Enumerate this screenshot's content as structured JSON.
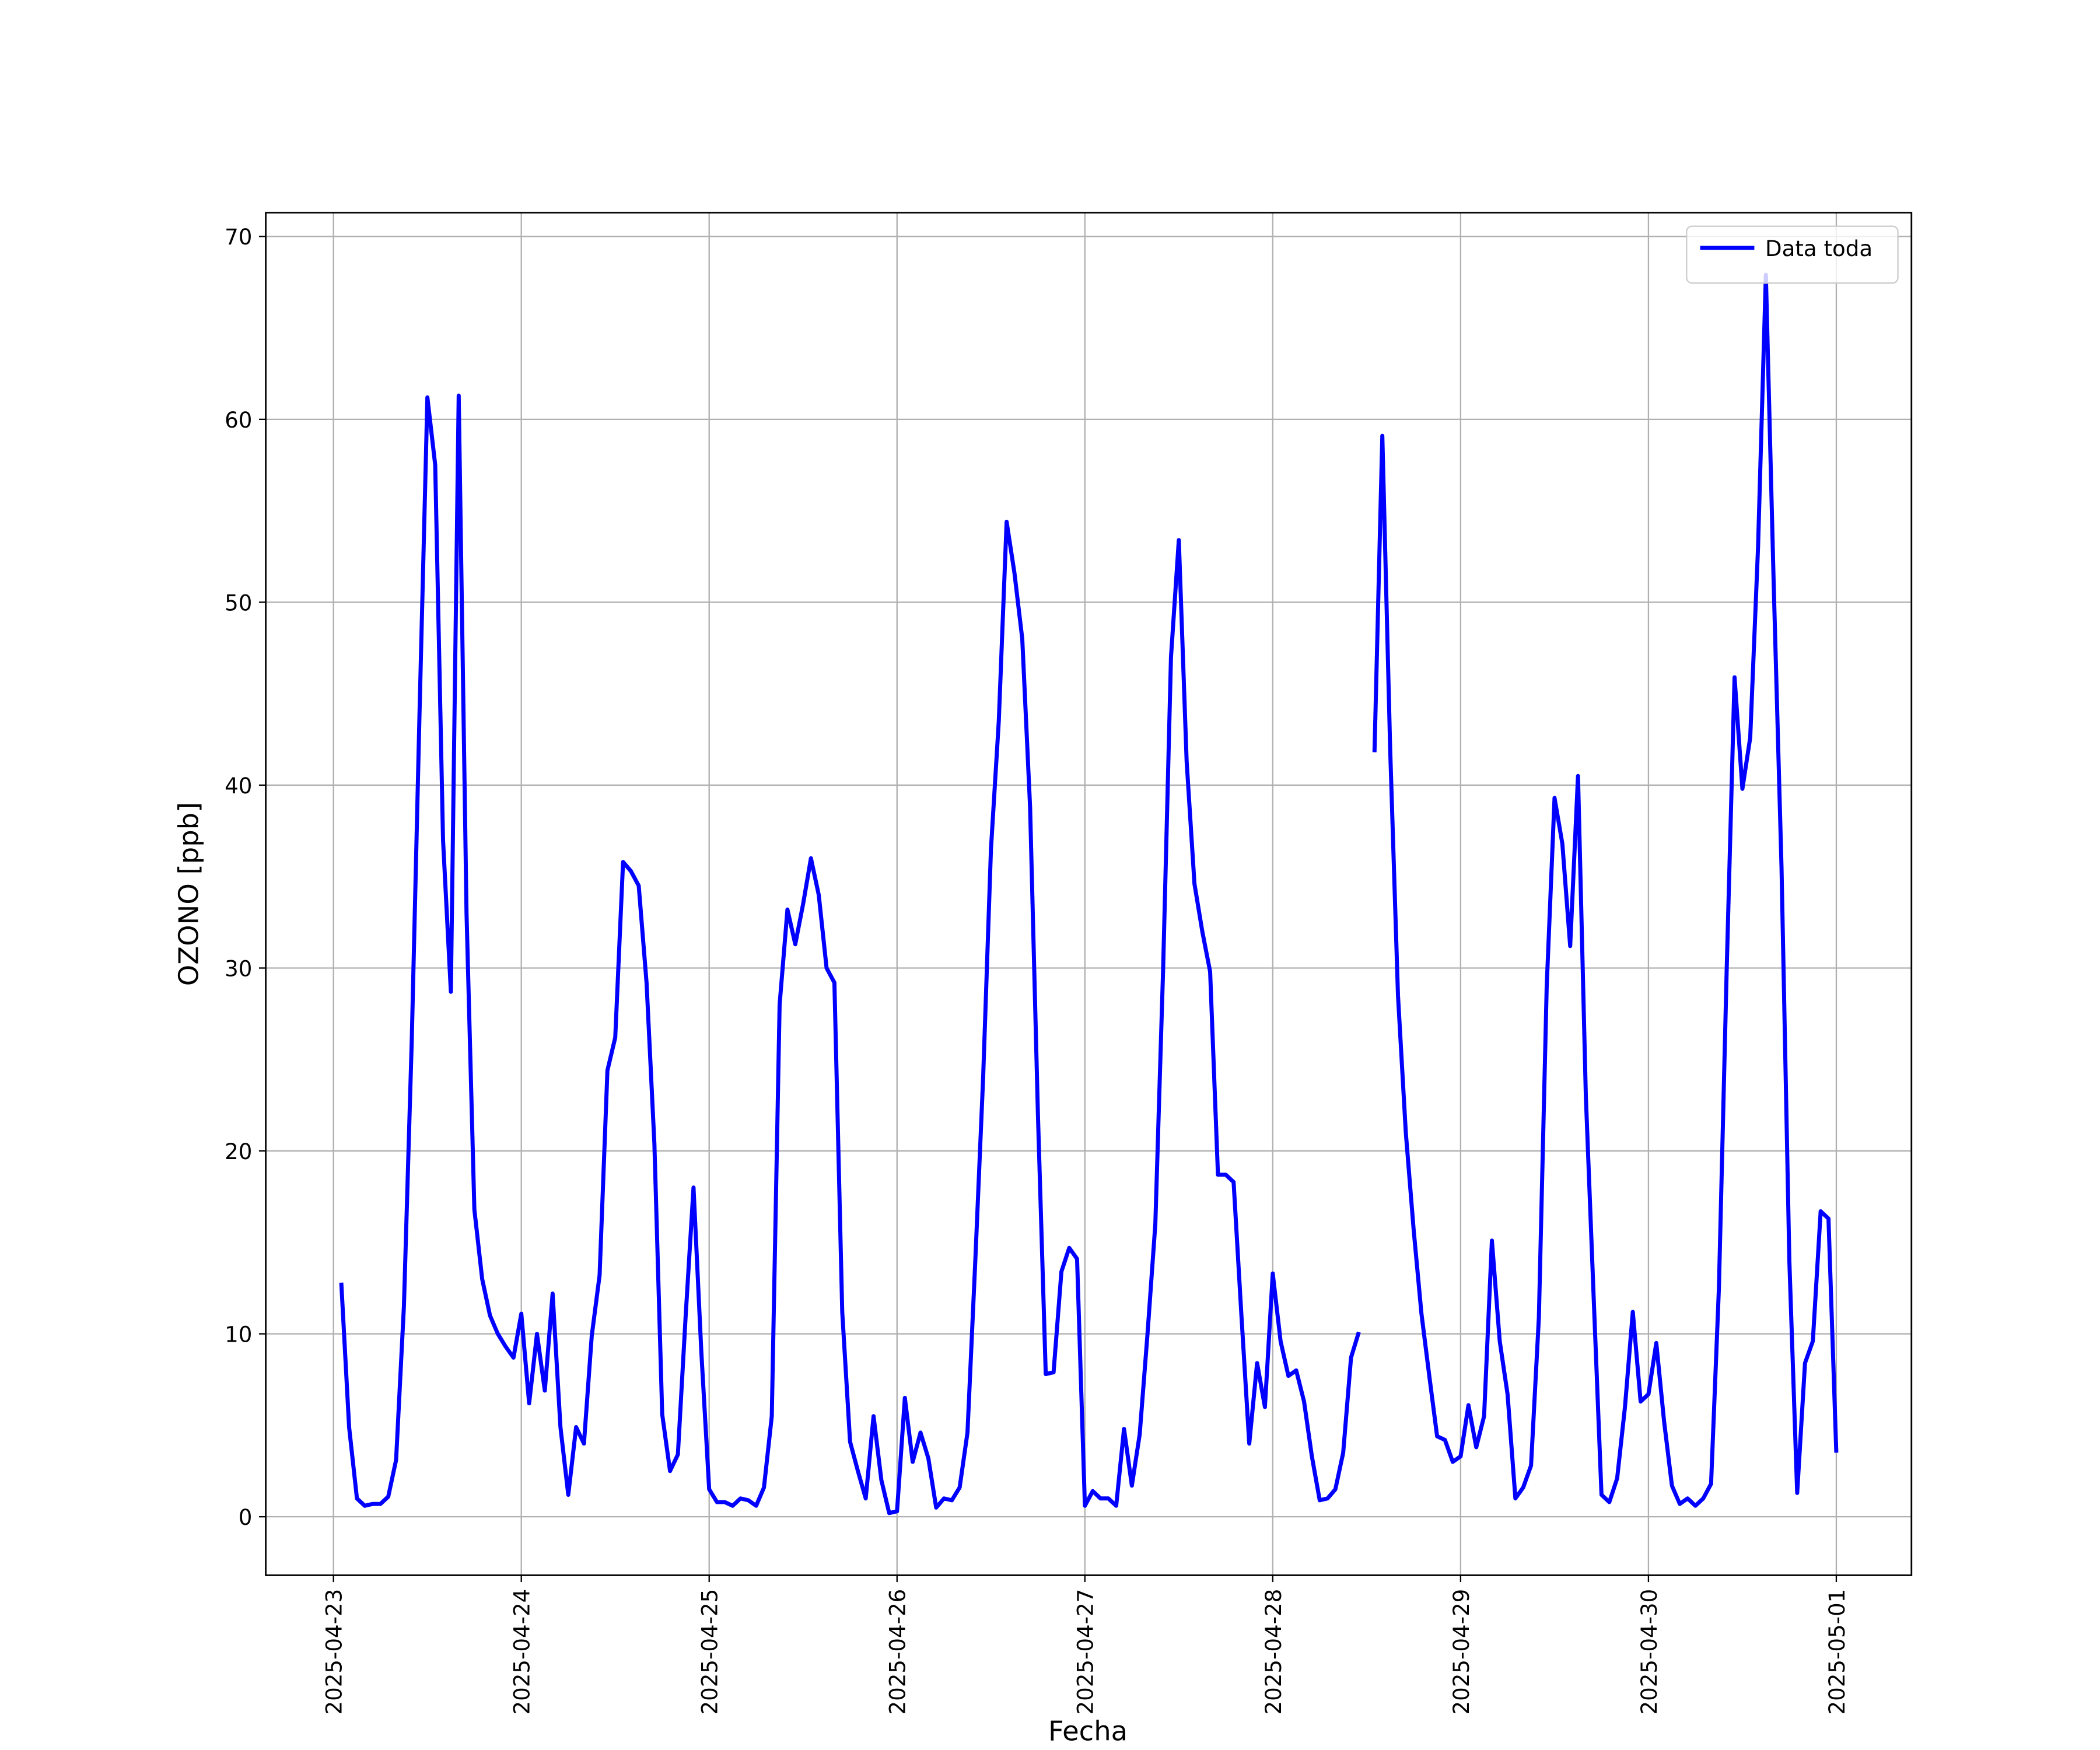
{
  "chart_data": {
    "type": "line",
    "xlabel": "Fecha",
    "ylabel": "OZONO [ppb]",
    "x": [
      1,
      2,
      3,
      4,
      5,
      6,
      7,
      8,
      9,
      10,
      11,
      12,
      13,
      14,
      15,
      16,
      17,
      18,
      19,
      20,
      21,
      22,
      23,
      24,
      25,
      26,
      27,
      28,
      29,
      30,
      31,
      32,
      33,
      34,
      35,
      36,
      37,
      38,
      39,
      40,
      41,
      42,
      43,
      44,
      45,
      46,
      47,
      48,
      49,
      50,
      51,
      52,
      53,
      54,
      55,
      56,
      57,
      58,
      59,
      60,
      61,
      62,
      63,
      64,
      65,
      66,
      67,
      68,
      69,
      70,
      71,
      72,
      73,
      74,
      75,
      76,
      77,
      78,
      79,
      80,
      81,
      82,
      83,
      84,
      85,
      86,
      87,
      88,
      89,
      90,
      91,
      92,
      93,
      94,
      95,
      96,
      97,
      98,
      99,
      100,
      101,
      102,
      103,
      104,
      105,
      106,
      107,
      108,
      109,
      110,
      111,
      112,
      113,
      114,
      115,
      116,
      117,
      118,
      119,
      120,
      121,
      122,
      123,
      124,
      125,
      126,
      127,
      128,
      129,
      130,
      131,
      132,
      133,
      134,
      135,
      136,
      137,
      138,
      139,
      140,
      141,
      142,
      143,
      144,
      145,
      146,
      147,
      148,
      149,
      150,
      151,
      152,
      153,
      154,
      155,
      156,
      157,
      158,
      159,
      160,
      161,
      162,
      163,
      164,
      165,
      166,
      167,
      168,
      169,
      170,
      171,
      172,
      173,
      174,
      175,
      176,
      177,
      178,
      179,
      180,
      181,
      182,
      183,
      184,
      185,
      186,
      187,
      188,
      189,
      190,
      191,
      192
    ],
    "series": [
      {
        "name": "Data toda",
        "color": "#0000ff",
        "values": [
          12.8,
          4.9,
          1.0,
          0.6,
          0.7,
          0.7,
          1.1,
          3.1,
          11.5,
          26,
          44,
          61.2,
          57.5,
          37,
          28.7,
          61.3,
          33,
          16.8,
          13,
          11,
          10,
          9.3,
          8.7,
          11.1,
          6.2,
          10,
          6.9,
          12.2,
          4.9,
          1.2,
          4.9,
          4.0,
          9.9,
          13.2,
          24.4,
          26.2,
          35.8,
          35.3,
          34.5,
          29.2,
          20.4,
          5.6,
          2.5,
          3.4,
          11,
          18,
          9,
          1.5,
          0.8,
          0.8,
          0.6,
          1.0,
          0.9,
          0.6,
          1.6,
          5.5,
          28,
          33.2,
          31.3,
          33.5,
          36,
          34,
          30,
          29.2,
          11.2,
          4.1,
          2.5,
          1.0,
          5.5,
          2.0,
          0.2,
          0.3,
          6.5,
          3.0,
          4.6,
          3.2,
          0.5,
          1.0,
          0.9,
          1.6,
          4.6,
          14,
          24,
          36.5,
          43.5,
          54.4,
          51.6,
          48,
          38.8,
          22,
          7.8,
          7.9,
          13.4,
          14.7,
          14.1,
          0.6,
          1.4,
          1.0,
          1.0,
          0.6,
          4.8,
          1.7,
          4.5,
          10,
          16,
          30,
          47,
          53.4,
          41.3,
          34.6,
          32,
          29.8,
          18.7,
          18.7,
          18.3,
          11,
          4.0,
          8.4,
          6.0,
          13.3,
          9.6,
          7.7,
          8.0,
          6.3,
          3.3,
          0.9,
          1.0,
          1.5,
          3.5,
          8.7,
          10.1,
          null,
          41.8,
          59.1,
          42,
          28.5,
          21,
          15.7,
          11.1,
          7.7,
          4.4,
          4.2,
          3.0,
          3.3,
          6.1,
          3.8,
          5.5,
          15.1,
          9.6,
          6.7,
          1.0,
          1.6,
          2.8,
          10.9,
          29,
          39.3,
          36.8,
          31.2,
          40.5,
          23,
          12,
          1.2,
          0.8,
          2.1,
          6.0,
          11.2,
          6.3,
          6.7,
          9.5,
          5.2,
          1.7,
          0.7,
          1.0,
          0.6,
          1.0,
          1.8,
          12.5,
          30,
          45.9,
          39.8,
          42.6,
          53,
          67.9,
          51,
          35.5,
          14,
          1.3,
          8.4,
          9.6,
          16.7,
          16.3,
          3.5
        ]
      }
    ],
    "xlim": [
      -8.65,
      201.6
    ],
    "ylim": [
      -3.2,
      71.3
    ],
    "xticks": [
      {
        "value": 0,
        "label": "2025-04-23"
      },
      {
        "value": 24,
        "label": "2025-04-24"
      },
      {
        "value": 48,
        "label": "2025-04-25"
      },
      {
        "value": 72,
        "label": "2025-04-26"
      },
      {
        "value": 96,
        "label": "2025-04-27"
      },
      {
        "value": 120,
        "label": "2025-04-28"
      },
      {
        "value": 144,
        "label": "2025-04-29"
      },
      {
        "value": 168,
        "label": "2025-04-30"
      },
      {
        "value": 192,
        "label": "2025-05-01"
      }
    ],
    "yticks": [
      0,
      10,
      20,
      30,
      40,
      50,
      60,
      70
    ],
    "grid": true,
    "legend": "upper right"
  }
}
